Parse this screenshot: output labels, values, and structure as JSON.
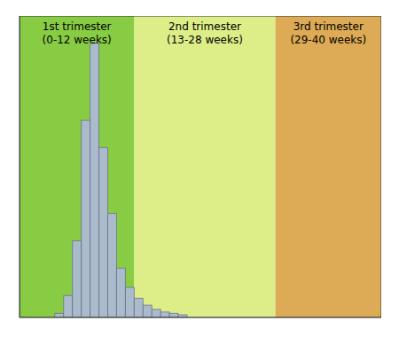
{
  "chart_data": {
    "type": "bar",
    "x": [
      4,
      5,
      6,
      7,
      8,
      9,
      10,
      11,
      12,
      13,
      14,
      15,
      16,
      17,
      18
    ],
    "values": [
      1.5,
      8,
      28,
      72,
      100,
      62,
      38,
      18,
      11,
      7,
      4.5,
      3,
      2,
      1.5,
      1
    ],
    "color": "#aabbcc",
    "xlim": [
      0,
      41
    ],
    "ylim": [
      0,
      110
    ],
    "xticks": [],
    "yticks": [],
    "tick_labels": false,
    "grid": false,
    "regions": [
      {
        "x": [
          0,
          13
        ],
        "color": "#88cc44",
        "label": "1st trimester\n(0-12 weeks)"
      },
      {
        "x": [
          13,
          29
        ],
        "color": "#ddee88",
        "label": "2nd trimester\n(13-28 weeks)"
      },
      {
        "x": [
          29,
          41
        ],
        "color": "#ddaa55",
        "label": "3rd trimester\n(29-40 weeks)"
      }
    ]
  }
}
